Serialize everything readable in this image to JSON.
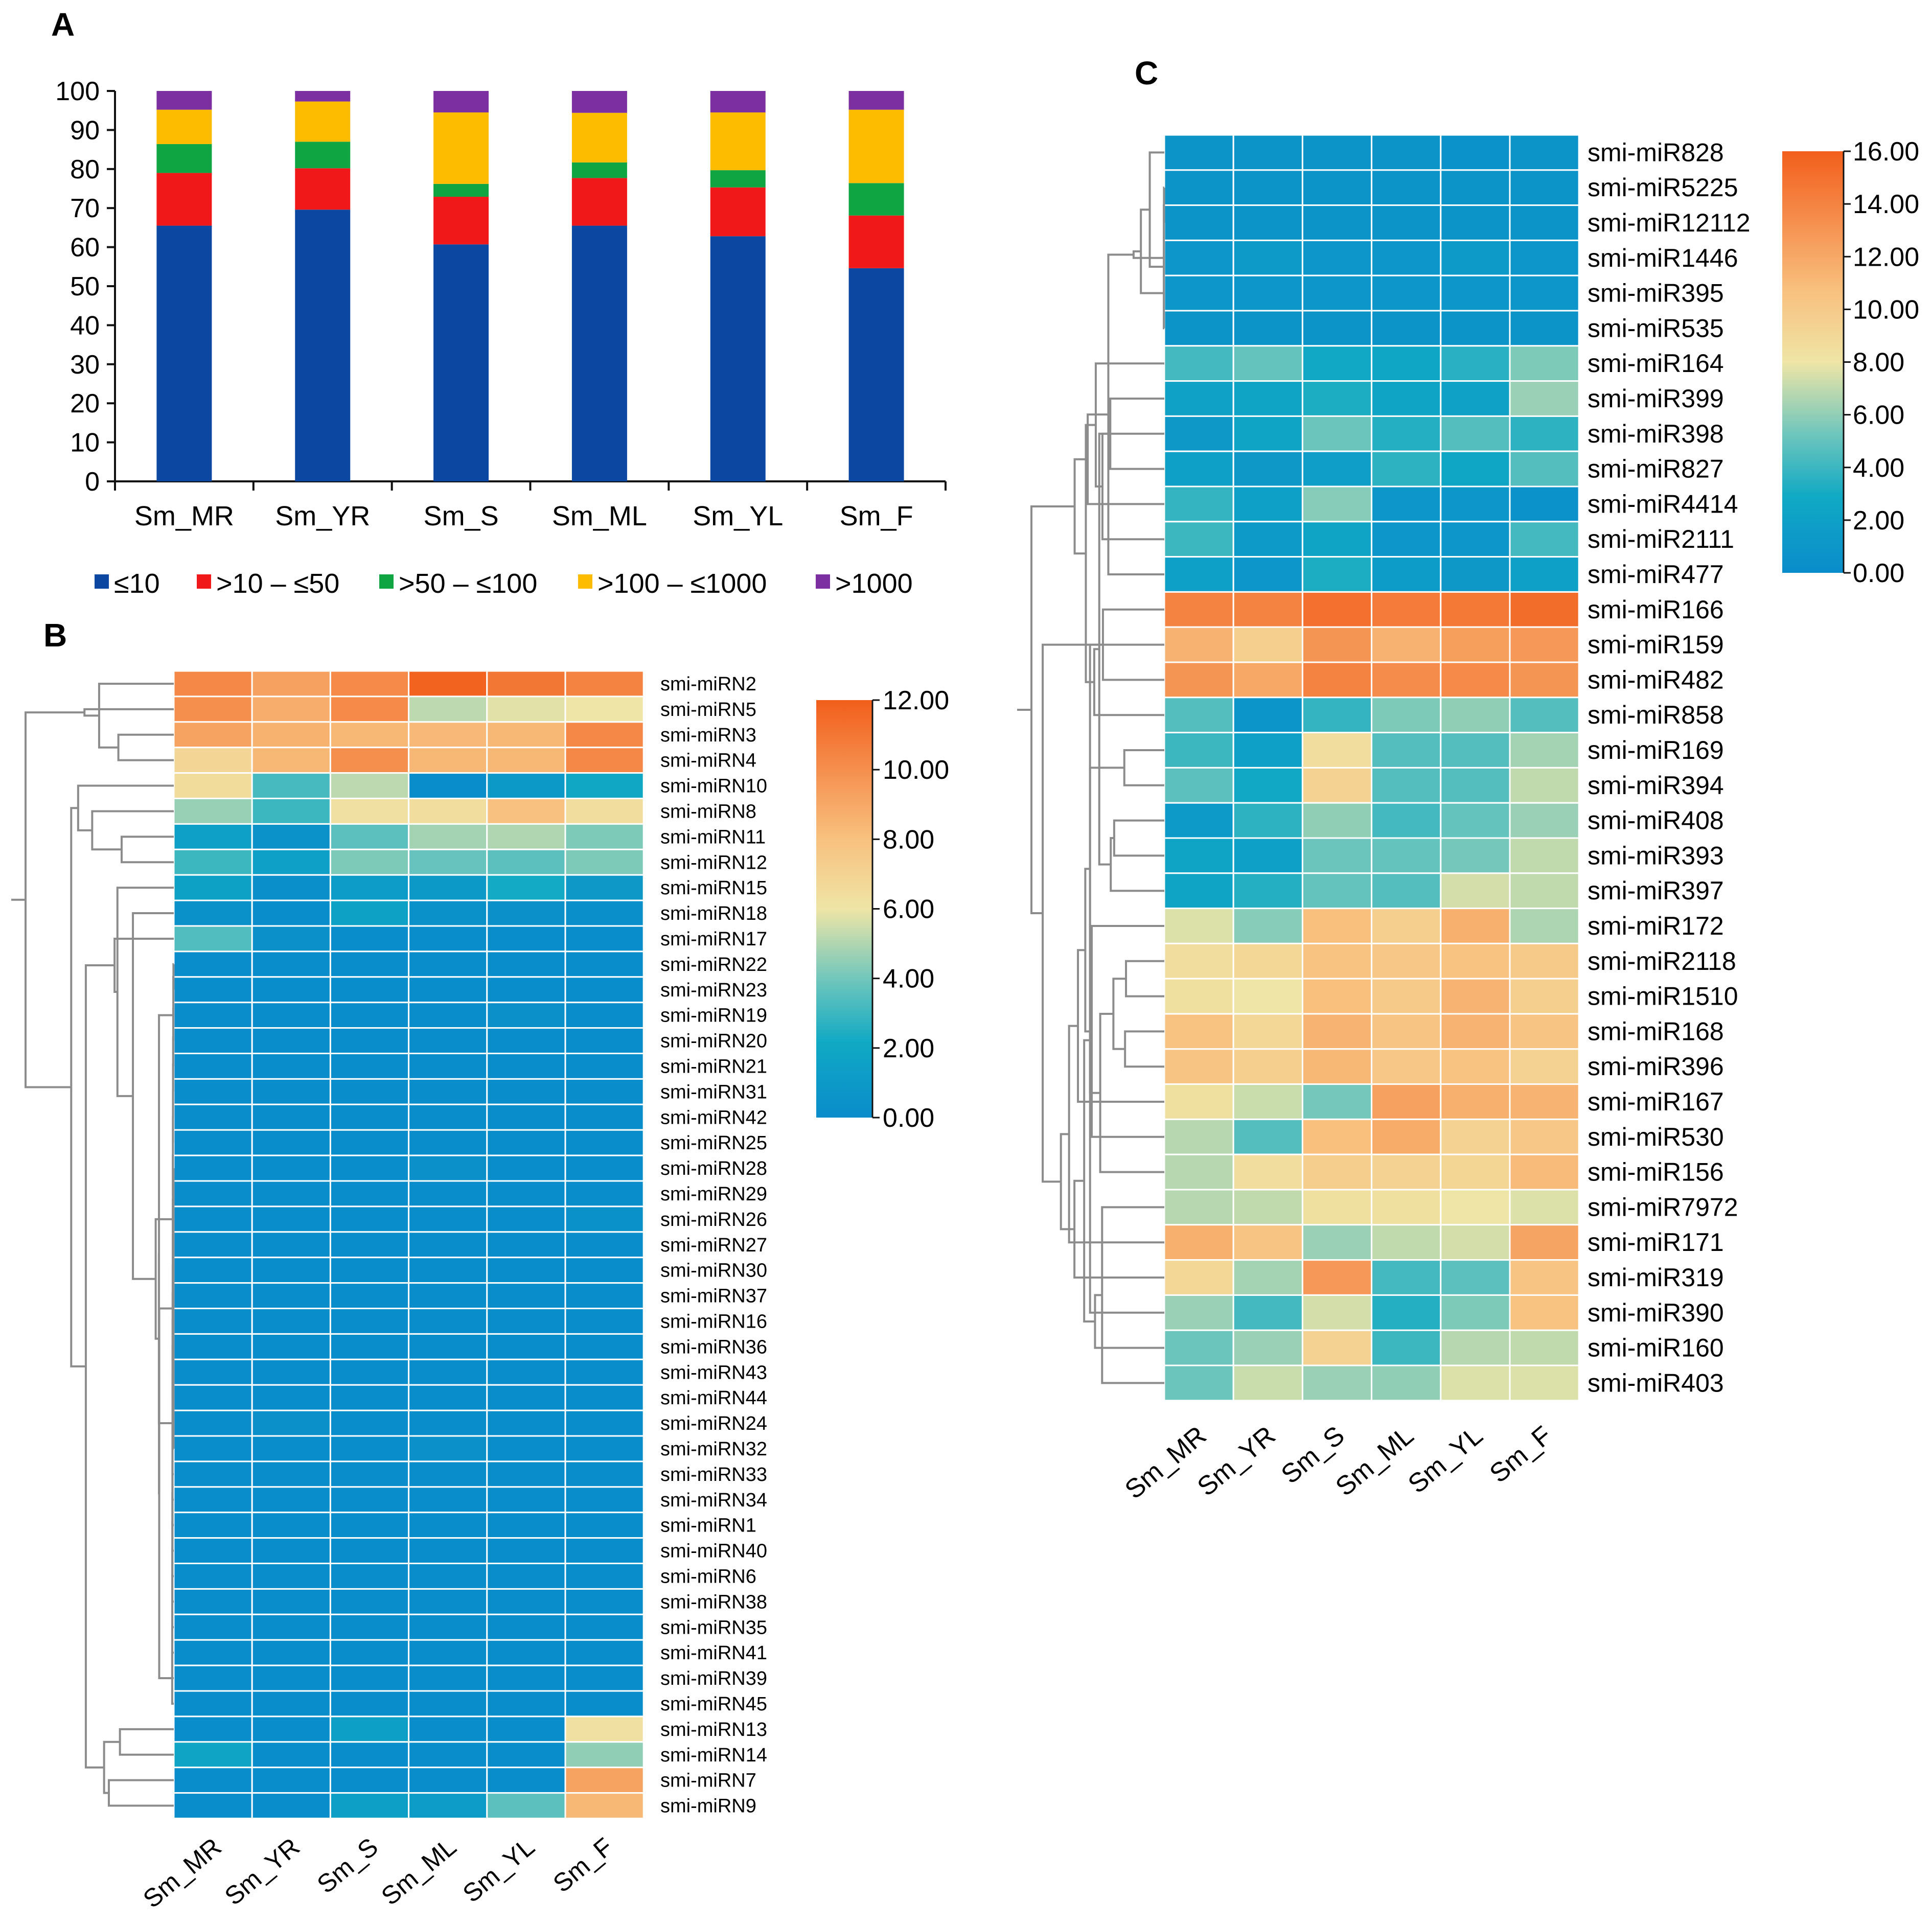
{
  "panels": {
    "a": "A",
    "b": "B",
    "c": "C"
  },
  "chart_data": [
    {
      "id": "A",
      "type": "bar",
      "stacked": true,
      "title": "",
      "xlabel": "",
      "ylabel": "",
      "ylim": [
        0,
        100
      ],
      "yticks": [
        "0",
        "10",
        "20",
        "30",
        "40",
        "50",
        "60",
        "70",
        "80",
        "90",
        "100"
      ],
      "categories": [
        "Sm_MR",
        "Sm_YR",
        "Sm_S",
        "Sm_ML",
        "Sm_YL",
        "Sm_F"
      ],
      "series": [
        {
          "name": "≤10",
          "color": "#0C47A1",
          "values": [
            65.5,
            69.6,
            60.7,
            65.5,
            62.8,
            54.6
          ]
        },
        {
          "name": ">10 – ≤50",
          "color": "#F01818",
          "values": [
            13.5,
            10.6,
            12.2,
            12.2,
            12.5,
            13.5
          ]
        },
        {
          "name": ">50 – ≤100",
          "color": "#10A543",
          "values": [
            7.4,
            6.8,
            3.3,
            4.0,
            4.4,
            8.3
          ]
        },
        {
          "name": ">100 – ≤1000",
          "color": "#FDBC00",
          "values": [
            8.8,
            10.3,
            18.3,
            12.7,
            14.8,
            18.8
          ]
        },
        {
          "name": ">1000",
          "color": "#7B2FA0",
          "values": [
            4.8,
            2.7,
            5.5,
            5.6,
            5.5,
            4.8
          ]
        }
      ],
      "legend_position": "bottom"
    },
    {
      "id": "B",
      "type": "heatmap",
      "columns": [
        "Sm_MR",
        "Sm_YR",
        "Sm_S",
        "Sm_ML",
        "Sm_YL",
        "Sm_F"
      ],
      "rows": [
        "smi-miRN2",
        "smi-miRN5",
        "smi-miRN3",
        "smi-miRN4",
        "smi-miRN10",
        "smi-miRN8",
        "smi-miRN11",
        "smi-miRN12",
        "smi-miRN15",
        "smi-miRN18",
        "smi-miRN17",
        "smi-miRN22",
        "smi-miRN23",
        "smi-miRN19",
        "smi-miRN20",
        "smi-miRN21",
        "smi-miRN31",
        "smi-miRN42",
        "smi-miRN25",
        "smi-miRN28",
        "smi-miRN29",
        "smi-miRN26",
        "smi-miRN27",
        "smi-miRN30",
        "smi-miRN37",
        "smi-miRN16",
        "smi-miRN36",
        "smi-miRN43",
        "smi-miRN44",
        "smi-miRN24",
        "smi-miRN32",
        "smi-miRN33",
        "smi-miRN34",
        "smi-miRN1",
        "smi-miRN40",
        "smi-miRN6",
        "smi-miRN38",
        "smi-miRN35",
        "smi-miRN41",
        "smi-miRN39",
        "smi-miRN45",
        "smi-miRN13",
        "smi-miRN14",
        "smi-miRN7",
        "smi-miRN9"
      ],
      "values": [
        [
          10.3,
          9.3,
          10.2,
          11.8,
          11.0,
          10.5
        ],
        [
          10.0,
          8.8,
          10.2,
          5.2,
          5.8,
          6.0
        ],
        [
          9.2,
          8.6,
          8.4,
          8.3,
          8.4,
          10.3
        ],
        [
          6.8,
          8.4,
          10.0,
          8.4,
          8.4,
          10.3
        ],
        [
          6.5,
          3.2,
          5.2,
          0.1,
          1.0,
          2.0
        ],
        [
          4.6,
          3.0,
          6.2,
          6.4,
          8.0,
          6.4
        ],
        [
          1.5,
          0.5,
          3.6,
          4.8,
          5.0,
          4.2
        ],
        [
          3.0,
          1.5,
          4.2,
          3.8,
          3.6,
          4.2
        ],
        [
          1.6,
          0.2,
          1.1,
          1.0,
          2.2,
          0.9
        ],
        [
          0.4,
          0.1,
          1.6,
          0.4,
          0.3,
          0.2
        ],
        [
          3.4,
          0.3,
          0.1,
          0.1,
          0.1,
          0.1
        ],
        [
          0.1,
          0.1,
          0.1,
          0.1,
          0.1,
          0.1
        ],
        [
          0.1,
          0.1,
          0.1,
          0.1,
          0.1,
          0.1
        ],
        [
          0.1,
          0.1,
          0.1,
          0.1,
          0.3,
          0.1
        ],
        [
          0.1,
          0.1,
          0.1,
          0.1,
          0.1,
          0.1
        ],
        [
          0.1,
          0.1,
          0.1,
          0.1,
          0.1,
          0.1
        ],
        [
          0.1,
          0.1,
          0.1,
          0.1,
          0.1,
          0.1
        ],
        [
          0.1,
          0.1,
          0.1,
          0.1,
          0.1,
          0.1
        ],
        [
          0.1,
          0.1,
          0.1,
          0.1,
          0.1,
          0.1
        ],
        [
          0.1,
          0.1,
          0.1,
          0.3,
          0.1,
          0.1
        ],
        [
          0.1,
          0.1,
          0.1,
          0.1,
          0.1,
          0.1
        ],
        [
          0.1,
          0.1,
          0.1,
          0.1,
          0.1,
          0.4
        ],
        [
          0.1,
          0.1,
          0.1,
          0.1,
          0.1,
          0.1
        ],
        [
          0.1,
          0.1,
          0.1,
          0.1,
          0.1,
          0.1
        ],
        [
          0.1,
          0.1,
          0.1,
          0.1,
          0.1,
          0.1
        ],
        [
          0.1,
          0.1,
          0.1,
          0.1,
          0.1,
          0.1
        ],
        [
          0.1,
          0.1,
          0.1,
          0.1,
          0.1,
          0.1
        ],
        [
          0.1,
          0.1,
          0.1,
          0.1,
          0.1,
          0.1
        ],
        [
          0.1,
          0.1,
          0.1,
          0.1,
          0.1,
          0.1
        ],
        [
          0.1,
          0.3,
          0.1,
          0.1,
          0.1,
          0.1
        ],
        [
          0.1,
          0.1,
          0.1,
          0.3,
          0.1,
          0.1
        ],
        [
          0.1,
          0.1,
          0.1,
          0.1,
          0.1,
          0.1
        ],
        [
          0.1,
          0.1,
          0.1,
          0.1,
          0.1,
          0.1
        ],
        [
          0.1,
          0.1,
          0.1,
          0.1,
          0.1,
          0.1
        ],
        [
          0.1,
          0.1,
          0.1,
          0.1,
          0.1,
          0.1
        ],
        [
          0.1,
          0.1,
          0.1,
          0.1,
          0.1,
          0.1
        ],
        [
          0.1,
          0.1,
          0.1,
          0.1,
          0.1,
          0.1
        ],
        [
          0.1,
          0.1,
          0.1,
          0.1,
          0.1,
          0.1
        ],
        [
          0.1,
          0.1,
          0.1,
          0.1,
          0.1,
          0.1
        ],
        [
          0.1,
          0.1,
          0.1,
          0.1,
          0.1,
          0.1
        ],
        [
          0.1,
          0.1,
          0.1,
          0.1,
          0.1,
          0.1
        ],
        [
          0.1,
          0.1,
          1.4,
          0.1,
          0.1,
          6.2
        ],
        [
          1.8,
          0.1,
          0.1,
          0.1,
          0.1,
          4.5
        ],
        [
          0.1,
          0.1,
          0.1,
          0.1,
          0.1,
          9.2
        ],
        [
          0.1,
          0.1,
          1.4,
          1.2,
          3.6,
          8.4
        ]
      ],
      "colorbar": {
        "min": 0,
        "max": 12,
        "ticks": [
          "0.00",
          "2.00",
          "4.00",
          "6.00",
          "8.00",
          "10.00",
          "12.00"
        ]
      }
    },
    {
      "id": "C",
      "type": "heatmap",
      "columns": [
        "Sm_MR",
        "Sm_YR",
        "Sm_S",
        "Sm_ML",
        "Sm_YL",
        "Sm_F"
      ],
      "rows": [
        "smi-miR828",
        "smi-miR5225",
        "smi-miR12112",
        "smi-miR1446",
        "smi-miR395",
        "smi-miR535",
        "smi-miR164",
        "smi-miR399",
        "smi-miR398",
        "smi-miR827",
        "smi-miR4414",
        "smi-miR2111",
        "smi-miR477",
        "smi-miR166",
        "smi-miR159",
        "smi-miR482",
        "smi-miR858",
        "smi-miR169",
        "smi-miR394",
        "smi-miR408",
        "smi-miR393",
        "smi-miR397",
        "smi-miR172",
        "smi-miR2118",
        "smi-miR1510",
        "smi-miR168",
        "smi-miR396",
        "smi-miR167",
        "smi-miR530",
        "smi-miR156",
        "smi-miR7972",
        "smi-miR171",
        "smi-miR319",
        "smi-miR390",
        "smi-miR160",
        "smi-miR403"
      ],
      "values": [
        [
          0.8,
          0.8,
          0.8,
          0.8,
          0.6,
          0.8
        ],
        [
          0.8,
          0.8,
          0.8,
          0.8,
          0.8,
          0.8
        ],
        [
          0.8,
          0.8,
          0.8,
          0.8,
          0.8,
          0.8
        ],
        [
          1.0,
          1.4,
          1.0,
          1.0,
          1.4,
          1.0
        ],
        [
          1.0,
          1.0,
          1.0,
          1.0,
          1.0,
          1.0
        ],
        [
          0.8,
          0.8,
          0.8,
          0.8,
          0.8,
          0.8
        ],
        [
          4.2,
          5.0,
          2.8,
          2.6,
          3.5,
          5.6
        ],
        [
          2.2,
          2.4,
          3.2,
          2.4,
          2.2,
          6.2
        ],
        [
          1.2,
          2.4,
          5.2,
          3.4,
          4.6,
          3.6
        ],
        [
          2.0,
          1.2,
          1.8,
          3.6,
          2.6,
          4.6
        ],
        [
          3.8,
          2.0,
          5.8,
          1.0,
          1.0,
          0.6
        ],
        [
          4.0,
          1.4,
          2.4,
          1.0,
          1.0,
          4.2
        ],
        [
          2.0,
          1.0,
          3.2,
          1.6,
          1.2,
          2.0
        ],
        [
          14.0,
          14.0,
          15.0,
          14.4,
          14.6,
          15.2
        ],
        [
          11.5,
          9.6,
          13.0,
          11.5,
          12.5,
          12.8
        ],
        [
          13.0,
          12.0,
          14.0,
          13.5,
          13.6,
          13.0
        ],
        [
          4.6,
          0.9,
          3.8,
          5.6,
          6.0,
          4.6
        ],
        [
          4.0,
          2.0,
          8.6,
          4.6,
          4.6,
          6.4
        ],
        [
          4.8,
          2.8,
          9.4,
          4.6,
          4.6,
          7.0
        ],
        [
          1.4,
          3.6,
          6.0,
          4.2,
          5.0,
          6.2
        ],
        [
          2.4,
          2.0,
          5.2,
          5.0,
          5.4,
          7.0
        ],
        [
          2.4,
          3.4,
          5.0,
          4.6,
          7.4,
          7.0
        ],
        [
          7.6,
          5.8,
          10.8,
          9.6,
          11.6,
          6.6
        ],
        [
          8.6,
          9.0,
          10.6,
          10.2,
          10.6,
          10.0
        ],
        [
          8.4,
          8.0,
          10.8,
          10.0,
          11.4,
          9.6
        ],
        [
          10.6,
          9.0,
          11.4,
          10.4,
          11.4,
          10.4
        ],
        [
          10.4,
          9.6,
          11.2,
          10.2,
          10.6,
          9.4
        ],
        [
          8.4,
          7.2,
          5.4,
          12.4,
          11.6,
          11.4
        ],
        [
          6.8,
          4.6,
          10.8,
          11.8,
          9.4,
          10.2
        ],
        [
          6.8,
          8.6,
          9.8,
          9.4,
          9.2,
          11.0
        ],
        [
          6.8,
          7.0,
          8.4,
          8.4,
          8.0,
          7.6
        ],
        [
          11.6,
          10.4,
          6.2,
          7.0,
          7.4,
          12.2
        ],
        [
          9.0,
          6.4,
          12.8,
          4.2,
          4.8,
          10.4
        ],
        [
          6.2,
          4.2,
          7.4,
          3.4,
          5.6,
          10.6
        ],
        [
          5.2,
          6.2,
          9.4,
          4.0,
          6.8,
          7.0
        ],
        [
          5.2,
          7.2,
          6.2,
          6.0,
          7.6,
          7.6
        ]
      ],
      "colorbar": {
        "min": 0,
        "max": 16,
        "ticks": [
          "0.00",
          "2.00",
          "4.00",
          "6.00",
          "8.00",
          "10.00",
          "12.00",
          "14.00",
          "16.00"
        ]
      }
    }
  ]
}
